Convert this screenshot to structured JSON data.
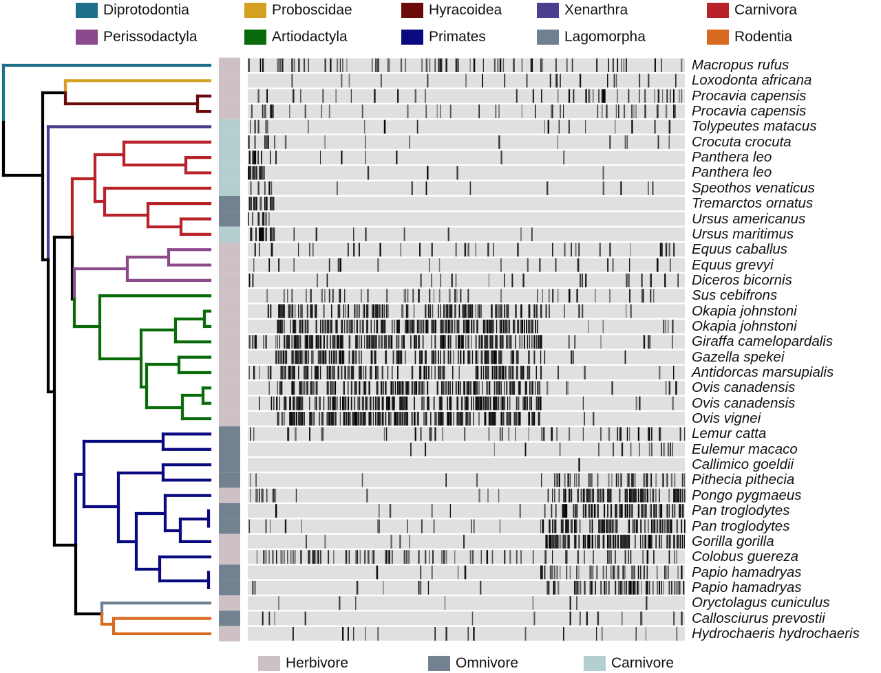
{
  "order_legend": [
    {
      "name": "Diprotodontia",
      "color": "#1f6e8c"
    },
    {
      "name": "Proboscidae",
      "color": "#d4a020"
    },
    {
      "name": "Hyracoidea",
      "color": "#6b0a0a"
    },
    {
      "name": "Xenarthra",
      "color": "#4a3f8f"
    },
    {
      "name": "Carnivora",
      "color": "#b8232a"
    },
    {
      "name": "Perissodactyla",
      "color": "#8b4a8c"
    },
    {
      "name": "Artiodactyla",
      "color": "#0a6b0a"
    },
    {
      "name": "Primates",
      "color": "#0a0a80"
    },
    {
      "name": "Lagomorpha",
      "color": "#6f8090"
    },
    {
      "name": "Rodentia",
      "color": "#d96a1f"
    }
  ],
  "diet_legend": [
    {
      "name": "Herbivore",
      "color": "#cdc1c6"
    },
    {
      "name": "Omnivore",
      "color": "#738191"
    },
    {
      "name": "Carnivore",
      "color": "#b4cfd0"
    }
  ],
  "rows": [
    {
      "species": "Macropus rufus",
      "diet": "Herbivore",
      "signal_density": [
        0.3,
        0.3,
        0.2
      ]
    },
    {
      "species": "Loxodonta africana",
      "diet": "Herbivore",
      "signal_density": [
        0.05,
        0.05,
        0.15
      ]
    },
    {
      "species": "Procavia capensis",
      "diet": "Herbivore",
      "signal_density": [
        0.1,
        0.05,
        0.25
      ]
    },
    {
      "species": "Procavia capensis",
      "diet": "Herbivore",
      "signal_density": [
        0.3,
        0.1,
        0.3
      ]
    },
    {
      "species": "Tolypeutes matacus",
      "diet": "Carnivore",
      "signal_density": [
        0.3,
        0.05,
        0.1
      ]
    },
    {
      "species": "Crocuta crocuta",
      "diet": "Carnivore",
      "signal_density": [
        0.6,
        0.08,
        0.05
      ]
    },
    {
      "species": "Panthera leo",
      "diet": "Carnivore",
      "signal_density": [
        0.7,
        0.03,
        0.03
      ]
    },
    {
      "species": "Panthera leo",
      "diet": "Carnivore",
      "signal_density": [
        0.7,
        0.02,
        0.02
      ]
    },
    {
      "species": "Speothos venaticus",
      "diet": "Carnivore",
      "signal_density": [
        0.5,
        0.02,
        0.05
      ]
    },
    {
      "species": "Tremarctos ornatus",
      "diet": "Omnivore",
      "signal_density": [
        0.7,
        0,
        0
      ]
    },
    {
      "species": "Ursus americanus",
      "diet": "Omnivore",
      "signal_density": [
        0.8,
        0,
        0
      ]
    },
    {
      "species": "Ursus maritimus",
      "diet": "Carnivore",
      "signal_density": [
        0.7,
        0.05,
        0.02
      ]
    },
    {
      "species": "Equus caballus",
      "diet": "Herbivore",
      "signal_density": [
        0.3,
        0.15,
        0.15
      ]
    },
    {
      "species": "Equus grevyi",
      "diet": "Herbivore",
      "signal_density": [
        0.2,
        0.1,
        0.1
      ]
    },
    {
      "species": "Diceros bicornis",
      "diet": "Herbivore",
      "signal_density": [
        0.05,
        0.05,
        0.1
      ]
    },
    {
      "species": "Sus cebifrons",
      "diet": "Herbivore",
      "signal_density": [
        0.3,
        0.2,
        0.15
      ]
    },
    {
      "species": "Okapia johnstoni",
      "diet": "Herbivore",
      "signal_density": [
        0.1,
        0.7,
        0.05
      ]
    },
    {
      "species": "Okapia johnstoni",
      "diet": "Herbivore",
      "signal_density": [
        0.1,
        0.85,
        0.05
      ]
    },
    {
      "species": "Giraffa camelopardalis",
      "diet": "Herbivore",
      "signal_density": [
        0.4,
        0.85,
        0.05
      ]
    },
    {
      "species": "Gazella spekei",
      "diet": "Herbivore",
      "signal_density": [
        0.1,
        0.75,
        0.05
      ]
    },
    {
      "species": "Antidorcas marsupialis",
      "diet": "Herbivore",
      "signal_density": [
        0.3,
        0.75,
        0.05
      ]
    },
    {
      "species": "Ovis canadensis",
      "diet": "Herbivore",
      "signal_density": [
        0.2,
        0.7,
        0.05
      ]
    },
    {
      "species": "Ovis canadensis",
      "diet": "Herbivore",
      "signal_density": [
        0.15,
        0.85,
        0.05
      ]
    },
    {
      "species": "Ovis vignei",
      "diet": "Herbivore",
      "signal_density": [
        0.1,
        0.85,
        0.05
      ]
    },
    {
      "species": "Lemur catta",
      "diet": "Omnivore",
      "signal_density": [
        0.3,
        0.15,
        0.2
      ]
    },
    {
      "species": "Eulemur macaco",
      "diet": "Omnivore",
      "signal_density": [
        0,
        0.03,
        0.2
      ]
    },
    {
      "species": "Callimico goeldii",
      "diet": "Omnivore",
      "signal_density": [
        0,
        0,
        0.03
      ]
    },
    {
      "species": "Pithecia pithecia",
      "diet": "Omnivore",
      "signal_density": [
        0.3,
        0.03,
        0.5
      ]
    },
    {
      "species": "Pongo pygmaeus",
      "diet": "Herbivore",
      "signal_density": [
        0.4,
        0.05,
        0.85
      ]
    },
    {
      "species": "Pan troglodytes",
      "diet": "Omnivore",
      "signal_density": [
        0.05,
        0.05,
        0.8
      ]
    },
    {
      "species": "Pan troglodytes",
      "diet": "Omnivore",
      "signal_density": [
        0.3,
        0.05,
        0.8
      ]
    },
    {
      "species": "Gorilla gorilla",
      "diet": "Herbivore",
      "signal_density": [
        0.05,
        0.03,
        0.85
      ]
    },
    {
      "species": "Colobus guereza",
      "diet": "Herbivore",
      "signal_density": [
        0.2,
        0.35,
        0.2
      ]
    },
    {
      "species": "Papio hamadryas",
      "diet": "Omnivore",
      "signal_density": [
        0.05,
        0.05,
        0.5
      ]
    },
    {
      "species": "Papio hamadryas",
      "diet": "Omnivore",
      "signal_density": [
        0.1,
        0.05,
        0.6
      ]
    },
    {
      "species": "Oryctolagus cuniculus",
      "diet": "Herbivore",
      "signal_density": [
        0,
        0.01,
        0.05
      ]
    },
    {
      "species": "Callosciurus prevostii",
      "diet": "Omnivore",
      "signal_density": [
        0.3,
        0.03,
        0.1
      ]
    },
    {
      "species": "Hydrochaeris hydrochaeris",
      "diet": "Herbivore",
      "signal_density": [
        0.05,
        0.05,
        0.1
      ]
    }
  ]
}
